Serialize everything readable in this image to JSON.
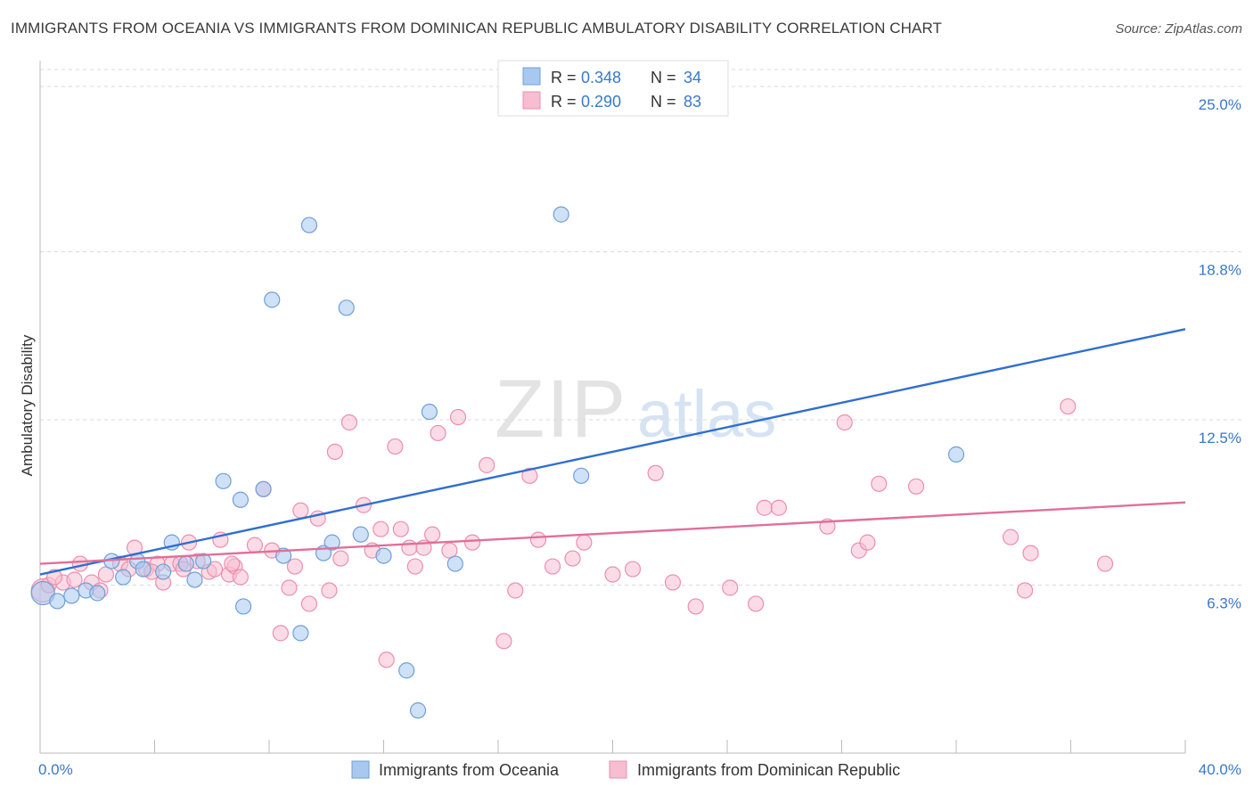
{
  "title": "IMMIGRANTS FROM OCEANIA VS IMMIGRANTS FROM DOMINICAN REPUBLIC AMBULATORY DISABILITY CORRELATION CHART",
  "source": "Source: ZipAtlas.com",
  "watermark": {
    "part1": "ZIP",
    "part2": "atlas"
  },
  "colors": {
    "blue_fill": "#a8c8f0",
    "blue_stroke": "#6f9fd8",
    "blue_line": "#2f6fcf",
    "pink_fill": "#f7bdd0",
    "pink_stroke": "#ec8fae",
    "pink_line": "#e07099",
    "axis_label": "#3a78c9",
    "grid": "#d9d9d9"
  },
  "legend": {
    "rows": [
      {
        "r_label": "R = ",
        "r_value": "0.348",
        "n_label": "N = ",
        "n_value": "34"
      },
      {
        "r_label": "R = ",
        "r_value": "0.290",
        "n_label": "N = ",
        "n_value": "83"
      }
    ]
  },
  "chart_data": {
    "type": "scatter",
    "title": "IMMIGRANTS FROM OCEANIA VS IMMIGRANTS FROM DOMINICAN REPUBLIC AMBULATORY DISABILITY CORRELATION CHART",
    "xlabel": "",
    "ylabel": "Ambulatory Disability",
    "xlim": [
      0,
      40
    ],
    "ylim": [
      0,
      26
    ],
    "x_tick_labels": [
      "0.0%",
      "40.0%"
    ],
    "y_ticks": [
      6.3,
      12.5,
      18.8,
      25.0
    ],
    "y_tick_labels": [
      "6.3%",
      "12.5%",
      "18.8%",
      "25.0%"
    ],
    "grid": true,
    "legend_position": "top-center",
    "series": [
      {
        "name": "Immigrants from Oceania",
        "color": "#a8c8f0",
        "trend": {
          "x": [
            0,
            40
          ],
          "y": [
            6.7,
            15.9
          ]
        },
        "points": [
          [
            0.1,
            6.0
          ],
          [
            0.6,
            5.7
          ],
          [
            1.1,
            5.9
          ],
          [
            1.6,
            6.1
          ],
          [
            2.0,
            6.0
          ],
          [
            2.5,
            7.2
          ],
          [
            2.9,
            6.6
          ],
          [
            3.4,
            7.2
          ],
          [
            3.6,
            6.9
          ],
          [
            4.3,
            6.8
          ],
          [
            4.6,
            7.9
          ],
          [
            5.1,
            7.1
          ],
          [
            5.4,
            6.5
          ],
          [
            5.7,
            7.2
          ],
          [
            6.4,
            10.2
          ],
          [
            7.0,
            9.5
          ],
          [
            7.1,
            5.5
          ],
          [
            7.8,
            9.9
          ],
          [
            8.1,
            17.0
          ],
          [
            8.5,
            7.4
          ],
          [
            9.1,
            4.5
          ],
          [
            9.4,
            19.8
          ],
          [
            9.9,
            7.5
          ],
          [
            10.2,
            7.9
          ],
          [
            10.7,
            16.7
          ],
          [
            11.2,
            8.2
          ],
          [
            12.0,
            7.4
          ],
          [
            12.8,
            3.1
          ],
          [
            13.2,
            1.6
          ],
          [
            13.6,
            12.8
          ],
          [
            14.5,
            7.1
          ],
          [
            18.2,
            20.2
          ],
          [
            18.9,
            10.4
          ],
          [
            32.0,
            11.2
          ]
        ]
      },
      {
        "name": "Immigrants from Dominican Republic",
        "color": "#f7bdd0",
        "trend": {
          "x": [
            0,
            40
          ],
          "y": [
            7.1,
            9.4
          ]
        },
        "points": [
          [
            0.1,
            6.1
          ],
          [
            0.3,
            6.3
          ],
          [
            0.8,
            6.4
          ],
          [
            1.4,
            7.1
          ],
          [
            1.8,
            6.4
          ],
          [
            2.1,
            6.1
          ],
          [
            2.3,
            6.7
          ],
          [
            2.8,
            7.1
          ],
          [
            3.1,
            6.9
          ],
          [
            3.3,
            7.7
          ],
          [
            3.7,
            6.9
          ],
          [
            4.1,
            7.1
          ],
          [
            4.3,
            6.4
          ],
          [
            4.6,
            7.1
          ],
          [
            4.9,
            7.1
          ],
          [
            5.2,
            7.9
          ],
          [
            5.5,
            7.2
          ],
          [
            5.9,
            6.8
          ],
          [
            6.1,
            6.9
          ],
          [
            6.3,
            8.0
          ],
          [
            6.6,
            6.7
          ],
          [
            6.8,
            7.0
          ],
          [
            7.0,
            6.6
          ],
          [
            7.5,
            7.8
          ],
          [
            7.8,
            9.9
          ],
          [
            8.1,
            7.6
          ],
          [
            8.4,
            4.5
          ],
          [
            8.7,
            6.2
          ],
          [
            8.9,
            7.0
          ],
          [
            9.1,
            9.1
          ],
          [
            9.4,
            5.6
          ],
          [
            9.7,
            8.8
          ],
          [
            10.1,
            6.1
          ],
          [
            10.3,
            11.3
          ],
          [
            10.5,
            7.3
          ],
          [
            10.8,
            12.4
          ],
          [
            11.3,
            9.3
          ],
          [
            11.6,
            7.6
          ],
          [
            11.9,
            8.4
          ],
          [
            12.1,
            3.5
          ],
          [
            12.4,
            11.5
          ],
          [
            12.6,
            8.4
          ],
          [
            12.9,
            7.7
          ],
          [
            13.1,
            7.0
          ],
          [
            13.4,
            7.7
          ],
          [
            13.7,
            8.2
          ],
          [
            13.9,
            12.0
          ],
          [
            14.3,
            7.6
          ],
          [
            14.6,
            12.6
          ],
          [
            15.1,
            7.9
          ],
          [
            15.6,
            10.8
          ],
          [
            16.2,
            4.2
          ],
          [
            16.6,
            6.1
          ],
          [
            17.1,
            10.4
          ],
          [
            17.4,
            8.0
          ],
          [
            17.9,
            7.0
          ],
          [
            18.6,
            7.3
          ],
          [
            19.0,
            7.9
          ],
          [
            20.0,
            6.7
          ],
          [
            20.7,
            6.9
          ],
          [
            21.5,
            10.5
          ],
          [
            22.1,
            6.4
          ],
          [
            22.9,
            5.5
          ],
          [
            24.1,
            6.2
          ],
          [
            25.0,
            5.6
          ],
          [
            25.3,
            9.2
          ],
          [
            25.8,
            9.2
          ],
          [
            27.5,
            8.5
          ],
          [
            28.1,
            12.4
          ],
          [
            28.6,
            7.6
          ],
          [
            28.9,
            7.9
          ],
          [
            29.3,
            10.1
          ],
          [
            30.6,
            10.0
          ],
          [
            33.9,
            8.1
          ],
          [
            34.4,
            6.1
          ],
          [
            34.6,
            7.5
          ],
          [
            35.9,
            13.0
          ],
          [
            37.2,
            7.1
          ],
          [
            0.5,
            6.6
          ],
          [
            1.2,
            6.5
          ],
          [
            3.9,
            6.8
          ],
          [
            5.0,
            6.9
          ],
          [
            6.7,
            7.1
          ]
        ]
      }
    ]
  },
  "axis": {
    "x_min_label": "0.0%",
    "x_max_label": "40.0%",
    "y_label": "Ambulatory Disability"
  }
}
